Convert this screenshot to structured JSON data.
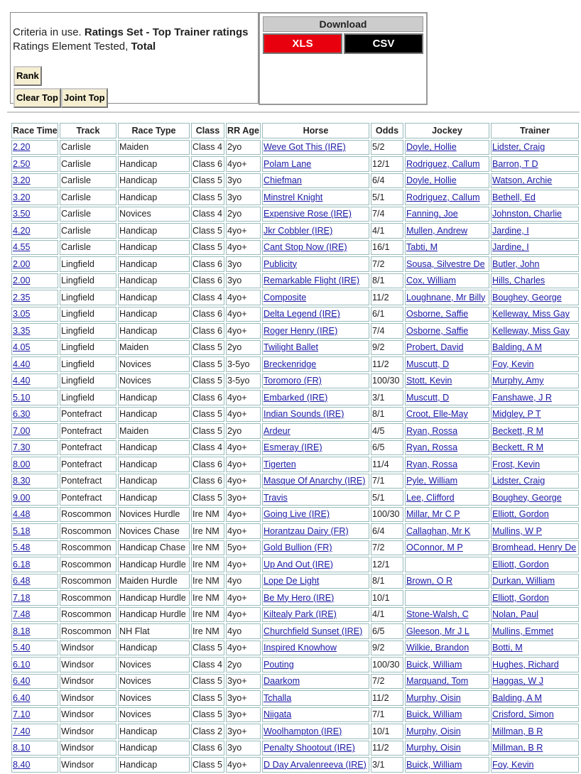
{
  "criteria": {
    "label": "Criteria in use.",
    "value": "Ratings Set - Top Trainer ratings"
  },
  "element": {
    "label": "Ratings Element Tested,",
    "value": "Total"
  },
  "buttons": {
    "rank": "Rank",
    "clear_top": "Clear Top",
    "joint_top": "Joint Top"
  },
  "download": {
    "title": "Download",
    "xls": "XLS",
    "csv": "CSV"
  },
  "table": {
    "header": [
      "Race Time",
      "Track",
      "Race Type",
      "Class",
      "RR Age",
      "Horse",
      "Odds",
      "Jockey",
      "Trainer"
    ],
    "rows": [
      [
        "2.20",
        "Carlisle",
        "Maiden",
        "Class 4",
        "2yo",
        "Weve Got This (IRE)",
        "5/2",
        "Doyle, Hollie",
        "Lidster, Craig"
      ],
      [
        "2.50",
        "Carlisle",
        "Handicap",
        "Class 6",
        "4yo+",
        "Polam Lane",
        "12/1",
        "Rodriguez, Callum",
        "Barron, T D"
      ],
      [
        "3.20",
        "Carlisle",
        "Handicap",
        "Class 5",
        "3yo",
        "Chiefman",
        "6/4",
        "Doyle, Hollie",
        "Watson, Archie"
      ],
      [
        "3.20",
        "Carlisle",
        "Handicap",
        "Class 5",
        "3yo",
        "Minstrel Knight",
        "5/1",
        "Rodriguez, Callum",
        "Bethell, Ed"
      ],
      [
        "3.50",
        "Carlisle",
        "Novices",
        "Class 4",
        "2yo",
        "Expensive Rose (IRE)",
        "7/4",
        "Fanning, Joe",
        "Johnston, Charlie"
      ],
      [
        "4.20",
        "Carlisle",
        "Handicap",
        "Class 5",
        "4yo+",
        "Jkr Cobbler (IRE)",
        "4/1",
        "Mullen, Andrew",
        "Jardine, I"
      ],
      [
        "4.55",
        "Carlisle",
        "Handicap",
        "Class 5",
        "4yo+",
        "Cant Stop Now (IRE)",
        "16/1",
        "Tabti, M",
        "Jardine, I"
      ],
      [
        "2.00",
        "Lingfield",
        "Handicap",
        "Class 6",
        "3yo",
        "Publicity",
        "7/2",
        "Sousa, Silvestre De",
        "Butler, John"
      ],
      [
        "2.00",
        "Lingfield",
        "Handicap",
        "Class 6",
        "3yo",
        "Remarkable Flight (IRE)",
        "8/1",
        "Cox, William",
        "Hills, Charles"
      ],
      [
        "2.35",
        "Lingfield",
        "Handicap",
        "Class 4",
        "4yo+",
        "Composite",
        "11/2",
        "Loughnane, Mr Billy",
        "Boughey, George"
      ],
      [
        "3.05",
        "Lingfield",
        "Handicap",
        "Class 6",
        "4yo+",
        "Delta Legend (IRE)",
        "6/1",
        "Osborne, Saffie",
        "Kelleway, Miss Gay"
      ],
      [
        "3.35",
        "Lingfield",
        "Handicap",
        "Class 6",
        "4yo+",
        "Roger Henry (IRE)",
        "7/4",
        "Osborne, Saffie",
        "Kelleway, Miss Gay"
      ],
      [
        "4.05",
        "Lingfield",
        "Maiden",
        "Class 5",
        "2yo",
        "Twilight Ballet",
        "9/2",
        "Probert, David",
        "Balding, A M"
      ],
      [
        "4.40",
        "Lingfield",
        "Novices",
        "Class 5",
        "3-5yo",
        "Breckenridge",
        "11/2",
        "Muscutt, D",
        "Foy, Kevin"
      ],
      [
        "4.40",
        "Lingfield",
        "Novices",
        "Class 5",
        "3-5yo",
        "Toromoro (FR)",
        "100/30",
        "Stott, Kevin",
        "Murphy, Amy"
      ],
      [
        "5.10",
        "Lingfield",
        "Handicap",
        "Class 6",
        "4yo+",
        "Embarked (IRE)",
        "3/1",
        "Muscutt, D",
        "Fanshawe, J R"
      ],
      [
        "6.30",
        "Pontefract",
        "Handicap",
        "Class 5",
        "4yo+",
        "Indian Sounds (IRE)",
        "8/1",
        "Croot, Elle-May",
        "Midgley, P T"
      ],
      [
        "7.00",
        "Pontefract",
        "Maiden",
        "Class 5",
        "2yo",
        "Ardeur",
        "4/5",
        "Ryan, Rossa",
        "Beckett, R M"
      ],
      [
        "7.30",
        "Pontefract",
        "Handicap",
        "Class 4",
        "4yo+",
        "Esmeray (IRE)",
        "6/5",
        "Ryan, Rossa",
        "Beckett, R M"
      ],
      [
        "8.00",
        "Pontefract",
        "Handicap",
        "Class 6",
        "4yo+",
        "Tigerten",
        "11/4",
        "Ryan, Rossa",
        "Frost, Kevin"
      ],
      [
        "8.30",
        "Pontefract",
        "Handicap",
        "Class 6",
        "4yo+",
        "Masque Of Anarchy (IRE)",
        "7/1",
        "Pyle, William",
        "Lidster, Craig"
      ],
      [
        "9.00",
        "Pontefract",
        "Handicap",
        "Class 5",
        "3yo+",
        "Travis",
        "5/1",
        "Lee, Clifford",
        "Boughey, George"
      ],
      [
        "4.48",
        "Roscommon",
        "Novices Hurdle",
        "Ire NM",
        "4yo+",
        "Going Live (IRE)",
        "100/30",
        "Millar, Mr C P",
        "Elliott, Gordon"
      ],
      [
        "5.18",
        "Roscommon",
        "Novices Chase",
        "Ire NM",
        "4yo+",
        "Horantzau Dairy (FR)",
        "6/4",
        "Callaghan, Mr K",
        "Mullins, W P"
      ],
      [
        "5.48",
        "Roscommon",
        "Handicap Chase",
        "Ire NM",
        "5yo+",
        "Gold Bullion (FR)",
        "7/2",
        "OConnor, M P",
        "Bromhead, Henry De"
      ],
      [
        "6.18",
        "Roscommon",
        "Handicap Hurdle",
        "Ire NM",
        "4yo+",
        "Up And Out (IRE)",
        "12/1",
        null,
        "Elliott, Gordon"
      ],
      [
        "6.48",
        "Roscommon",
        "Maiden Hurdle",
        "Ire NM",
        "4yo",
        "Lope De Light",
        "8/1",
        "Brown, O R",
        "Durkan, William"
      ],
      [
        "7.18",
        "Roscommon",
        "Handicap Hurdle",
        "Ire NM",
        "4yo+",
        "Be My Hero (IRE)",
        "10/1",
        null,
        "Elliott, Gordon"
      ],
      [
        "7.48",
        "Roscommon",
        "Handicap Hurdle",
        "Ire NM",
        "4yo+",
        "Kiltealy Park (IRE)",
        "4/1",
        "Stone-Walsh, C",
        "Nolan, Paul"
      ],
      [
        "8.18",
        "Roscommon",
        "NH Flat",
        "Ire NM",
        "4yo",
        "Churchfield Sunset (IRE)",
        "6/5",
        "Gleeson, Mr J L",
        "Mullins, Emmet"
      ],
      [
        "5.40",
        "Windsor",
        "Handicap",
        "Class 5",
        "4yo+",
        "Inspired Knowhow",
        "9/2",
        "Wilkie, Brandon",
        "Botti, M"
      ],
      [
        "6.10",
        "Windsor",
        "Novices",
        "Class 4",
        "2yo",
        "Pouting",
        "100/30",
        "Buick, William",
        "Hughes, Richard"
      ],
      [
        "6.40",
        "Windsor",
        "Novices",
        "Class 5",
        "3yo+",
        "Daarkom",
        "7/2",
        "Marquand, Tom",
        "Haggas, W J"
      ],
      [
        "6.40",
        "Windsor",
        "Novices",
        "Class 5",
        "3yo+",
        "Tchalla",
        "11/2",
        "Murphy, Oisin",
        "Balding, A M"
      ],
      [
        "7.10",
        "Windsor",
        "Novices",
        "Class 5",
        "3yo+",
        "Niigata",
        "7/1",
        "Buick, William",
        "Crisford, Simon"
      ],
      [
        "7.40",
        "Windsor",
        "Handicap",
        "Class 2",
        "3yo+",
        "Woolhampton (IRE)",
        "10/1",
        "Murphy, Oisin",
        "Millman, B R"
      ],
      [
        "8.10",
        "Windsor",
        "Handicap",
        "Class 6",
        "3yo",
        "Penalty Shootout (IRE)",
        "11/2",
        "Murphy, Oisin",
        "Millman, B R"
      ],
      [
        "8.40",
        "Windsor",
        "Handicap",
        "Class 5",
        "4yo+",
        "D Day Arvalenreeva (IRE)",
        "3/1",
        "Buick, William",
        "Foy, Kevin"
      ]
    ]
  }
}
